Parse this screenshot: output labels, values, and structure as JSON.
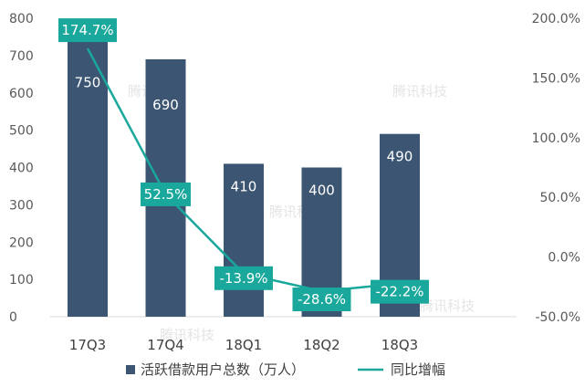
{
  "chart_data": {
    "type": "bar",
    "categories": [
      "17Q3",
      "17Q4",
      "18Q1",
      "18Q2",
      "18Q3"
    ],
    "series": [
      {
        "name": "活跃借款用户总数（万人）",
        "type": "bar",
        "axis": "left",
        "values": [
          750,
          690,
          410,
          400,
          490
        ],
        "labels": [
          "750",
          "690",
          "410",
          "400",
          "490"
        ],
        "color": "#3b5572"
      },
      {
        "name": "同比增幅",
        "type": "line",
        "axis": "right",
        "values": [
          174.7,
          52.5,
          -13.9,
          -28.6,
          -22.2
        ],
        "labels": [
          "174.7%",
          "52.5%",
          "-13.9%",
          "-28.6%",
          "-22.2%"
        ],
        "color": "#1aa89c"
      }
    ],
    "y_left": {
      "ylim": [
        0,
        800
      ],
      "ticks": [
        "0",
        "100",
        "200",
        "300",
        "400",
        "500",
        "600",
        "700",
        "800"
      ]
    },
    "y_right": {
      "ylim": [
        -50,
        200
      ],
      "ticks": [
        "-50.0%",
        "0.0%",
        "50.0%",
        "100.0%",
        "150.0%",
        "200.0%"
      ]
    },
    "grid": false,
    "legend_position": "bottom",
    "watermark": "腾讯科技"
  }
}
